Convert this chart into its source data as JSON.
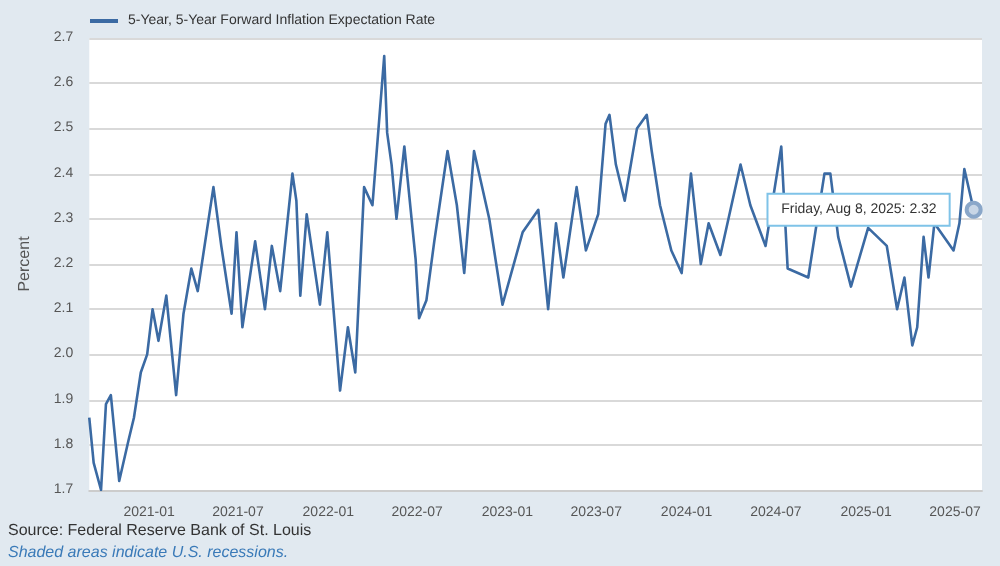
{
  "chart_data": {
    "type": "line",
    "ylabel": "Percent",
    "x": [
      "2020-09-01",
      "2020-09-10",
      "2020-09-25",
      "2020-10-05",
      "2020-10-15",
      "2020-11-01",
      "2020-11-20",
      "2020-12-01",
      "2020-12-15",
      "2020-12-28",
      "2021-01-08",
      "2021-01-20",
      "2021-02-05",
      "2021-02-25",
      "2021-03-12",
      "2021-03-28",
      "2021-04-10",
      "2021-05-12",
      "2021-05-28",
      "2021-06-18",
      "2021-06-28",
      "2021-07-10",
      "2021-08-05",
      "2021-08-25",
      "2021-09-08",
      "2021-09-25",
      "2021-10-20",
      "2021-10-28",
      "2021-11-05",
      "2021-11-18",
      "2021-12-15",
      "2021-12-30",
      "2022-01-25",
      "2022-02-10",
      "2022-02-25",
      "2022-03-15",
      "2022-04-01",
      "2022-04-25",
      "2022-05-01",
      "2022-05-10",
      "2022-05-20",
      "2022-06-05",
      "2022-06-28",
      "2022-07-05",
      "2022-07-20",
      "2022-08-05",
      "2022-09-01",
      "2022-09-20",
      "2022-10-05",
      "2022-10-25",
      "2022-11-25",
      "2022-12-22",
      "2023-02-01",
      "2023-03-05",
      "2023-03-25",
      "2023-04-10",
      "2023-04-25",
      "2023-05-22",
      "2023-06-10",
      "2023-07-05",
      "2023-07-20",
      "2023-07-28",
      "2023-08-10",
      "2023-08-28",
      "2023-09-22",
      "2023-10-12",
      "2023-10-22",
      "2023-11-08",
      "2023-12-01",
      "2023-12-22",
      "2024-01-10",
      "2024-01-30",
      "2024-02-15",
      "2024-03-10",
      "2024-04-20",
      "2024-05-10",
      "2024-06-10",
      "2024-07-12",
      "2024-07-25",
      "2024-09-05",
      "2024-10-08",
      "2024-10-20",
      "2024-11-05",
      "2024-12-01",
      "2025-01-05",
      "2025-02-12",
      "2025-03-05",
      "2025-03-20",
      "2025-04-05",
      "2025-04-15",
      "2025-04-28",
      "2025-05-08",
      "2025-05-20",
      "2025-06-28",
      "2025-07-10",
      "2025-07-20",
      "2025-08-08"
    ],
    "series": [
      {
        "name": "5-Year, 5-Year Forward Inflation Expectation Rate",
        "color": "#3b6aa3",
        "values": [
          1.86,
          1.76,
          1.7,
          1.89,
          1.91,
          1.72,
          1.81,
          1.86,
          1.96,
          2.0,
          2.1,
          2.03,
          2.13,
          1.91,
          2.09,
          2.19,
          2.14,
          2.37,
          2.24,
          2.09,
          2.27,
          2.06,
          2.25,
          2.1,
          2.24,
          2.14,
          2.4,
          2.34,
          2.13,
          2.31,
          2.11,
          2.27,
          1.92,
          2.06,
          1.96,
          2.37,
          2.33,
          2.66,
          2.49,
          2.42,
          2.3,
          2.46,
          2.21,
          2.08,
          2.12,
          2.25,
          2.45,
          2.33,
          2.18,
          2.45,
          2.3,
          2.11,
          2.27,
          2.32,
          2.1,
          2.29,
          2.17,
          2.37,
          2.23,
          2.31,
          2.51,
          2.53,
          2.42,
          2.34,
          2.5,
          2.53,
          2.45,
          2.33,
          2.23,
          2.18,
          2.4,
          2.2,
          2.29,
          2.22,
          2.42,
          2.33,
          2.24,
          2.46,
          2.19,
          2.17,
          2.4,
          2.4,
          2.26,
          2.15,
          2.28,
          2.24,
          2.1,
          2.17,
          2.02,
          2.06,
          2.26,
          2.17,
          2.29,
          2.23,
          2.29,
          2.41,
          2.32
        ]
      }
    ],
    "xlim": [
      "2020-09-01",
      "2025-08-25"
    ],
    "xticks": [
      "2021-01",
      "2021-07",
      "2022-01",
      "2022-07",
      "2023-01",
      "2023-07",
      "2024-01",
      "2024-07",
      "2025-01",
      "2025-07"
    ],
    "ylim": [
      1.7,
      2.7
    ],
    "yticks": [
      1.7,
      1.8,
      1.9,
      {
        "value": 2,
        "label": "2.0"
      },
      2.1,
      2.2,
      2.3,
      2.4,
      2.5,
      2.6,
      2.7
    ],
    "grid": "y",
    "legend": "top left",
    "marker": "none",
    "line_style": "solid",
    "annotations": [
      {
        "text": "Friday, Aug 8, 2025: 2.32",
        "x": "2025-08-08",
        "y": 2.32
      },
      "Source: Federal Reserve Bank of St. Louis",
      "Shaded areas indicate U.S. recessions."
    ]
  }
}
